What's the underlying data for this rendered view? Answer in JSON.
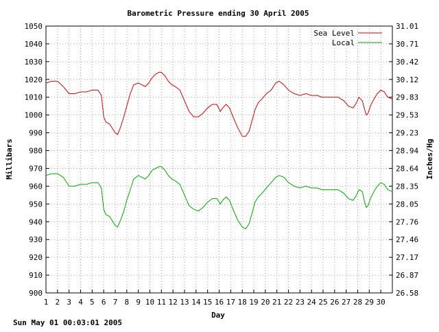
{
  "footer_timestamp": "Sun May 01 00:03:01 2005",
  "chart_data": {
    "type": "line",
    "title": "Barometric Pressure ending 30 April 2005",
    "xlabel": "Day",
    "ylabel": "Millibars",
    "y2label": "Inches/Hg",
    "xlim": [
      1,
      31
    ],
    "ylim": [
      900,
      1050
    ],
    "y2lim": [
      26.58,
      31.01
    ],
    "x_ticks": [
      1,
      2,
      3,
      4,
      5,
      6,
      7,
      8,
      9,
      10,
      11,
      12,
      13,
      14,
      15,
      16,
      17,
      18,
      19,
      20,
      21,
      22,
      23,
      24,
      25,
      26,
      27,
      28,
      29,
      30
    ],
    "y_ticks": [
      900,
      910,
      920,
      930,
      940,
      950,
      960,
      970,
      980,
      990,
      1000,
      1010,
      1020,
      1030,
      1040,
      1050
    ],
    "y2_ticks": [
      "26.58",
      "26.87",
      "27.17",
      "27.46",
      "27.76",
      "28.05",
      "28.35",
      "28.64",
      "28.94",
      "29.23",
      "29.53",
      "29.83",
      "30.12",
      "30.42",
      "30.71",
      "31.01"
    ],
    "grid": true,
    "legend_position": "top-right",
    "series": [
      {
        "name": "Sea Level",
        "color": "#dd0000",
        "x": [
          1,
          1.5,
          2,
          2.5,
          3,
          3.5,
          4,
          4.5,
          5,
          5.5,
          5.8,
          6,
          6.2,
          6.5,
          6.8,
          7,
          7.2,
          7.4,
          7.7,
          8,
          8.3,
          8.6,
          9,
          9.3,
          9.6,
          9.9,
          10.2,
          10.5,
          10.8,
          11,
          11.3,
          11.6,
          11.9,
          12.2,
          12.6,
          13,
          13.4,
          13.8,
          14.2,
          14.6,
          15,
          15.4,
          15.8,
          16.1,
          16.3,
          16.6,
          16.9,
          17.2,
          17.6,
          18,
          18.3,
          18.6,
          18.9,
          19.1,
          19.4,
          19.7,
          20.1,
          20.5,
          20.9,
          21.2,
          21.6,
          22,
          22.5,
          23,
          23.5,
          24,
          24.5,
          24.9,
          25.3,
          25.8,
          26.3,
          26.8,
          27.2,
          27.6,
          27.9,
          28.1,
          28.4,
          28.6,
          28.75,
          28.9,
          29.1,
          29.4,
          29.7,
          30,
          30.3,
          30.6,
          31
        ],
        "values": [
          1018,
          1019,
          1019,
          1016,
          1012,
          1012,
          1013,
          1013,
          1014,
          1014,
          1011,
          999,
          996,
          995,
          992,
          990,
          989,
          992,
          998,
          1005,
          1012,
          1017,
          1018,
          1017,
          1016,
          1018,
          1021,
          1023,
          1024,
          1024,
          1022,
          1019,
          1017,
          1016,
          1014,
          1008,
          1002,
          999,
          999,
          1001,
          1004,
          1006,
          1006,
          1002,
          1004,
          1006,
          1004,
          999,
          993,
          988,
          988,
          991,
          998,
          1003,
          1007,
          1009,
          1012,
          1014,
          1018,
          1019,
          1017,
          1014,
          1012,
          1011,
          1012,
          1011,
          1011,
          1010,
          1010,
          1010,
          1010,
          1008,
          1005,
          1004,
          1007,
          1010,
          1008,
          1003,
          1000,
          1001,
          1005,
          1009,
          1012,
          1014,
          1013,
          1010,
          1009
        ]
      },
      {
        "name": "Local",
        "color": "#00aa00",
        "x": [
          1,
          1.5,
          2,
          2.5,
          3,
          3.5,
          4,
          4.5,
          5,
          5.5,
          5.8,
          6,
          6.2,
          6.5,
          6.8,
          7,
          7.2,
          7.4,
          7.7,
          8,
          8.3,
          8.6,
          9,
          9.3,
          9.6,
          9.9,
          10.2,
          10.5,
          10.8,
          11,
          11.3,
          11.6,
          11.9,
          12.2,
          12.6,
          13,
          13.4,
          13.8,
          14.2,
          14.6,
          15,
          15.4,
          15.8,
          16.1,
          16.3,
          16.6,
          16.9,
          17.2,
          17.6,
          18,
          18.3,
          18.6,
          18.9,
          19.1,
          19.4,
          19.7,
          20.1,
          20.5,
          20.9,
          21.2,
          21.6,
          22,
          22.5,
          23,
          23.5,
          24,
          24.5,
          24.9,
          25.3,
          25.8,
          26.3,
          26.8,
          27.2,
          27.6,
          27.9,
          28.1,
          28.4,
          28.6,
          28.75,
          28.9,
          29.1,
          29.4,
          29.7,
          30,
          30.3,
          30.6,
          31
        ],
        "values": [
          966,
          967,
          967,
          965,
          960,
          960,
          961,
          961,
          962,
          962,
          959,
          947,
          944,
          943,
          940,
          938,
          937,
          940,
          945,
          952,
          958,
          964,
          966,
          965,
          964,
          966,
          969,
          970,
          971,
          971,
          969,
          966,
          964,
          963,
          961,
          955,
          949,
          947,
          946,
          948,
          951,
          953,
          953,
          950,
          952,
          954,
          952,
          947,
          941,
          937,
          936,
          939,
          946,
          951,
          954,
          956,
          959,
          962,
          965,
          966,
          965,
          962,
          960,
          959,
          960,
          959,
          959,
          958,
          958,
          958,
          958,
          956,
          953,
          952,
          955,
          958,
          957,
          951,
          948,
          949,
          953,
          957,
          960,
          962,
          961,
          958,
          957
        ]
      }
    ]
  }
}
